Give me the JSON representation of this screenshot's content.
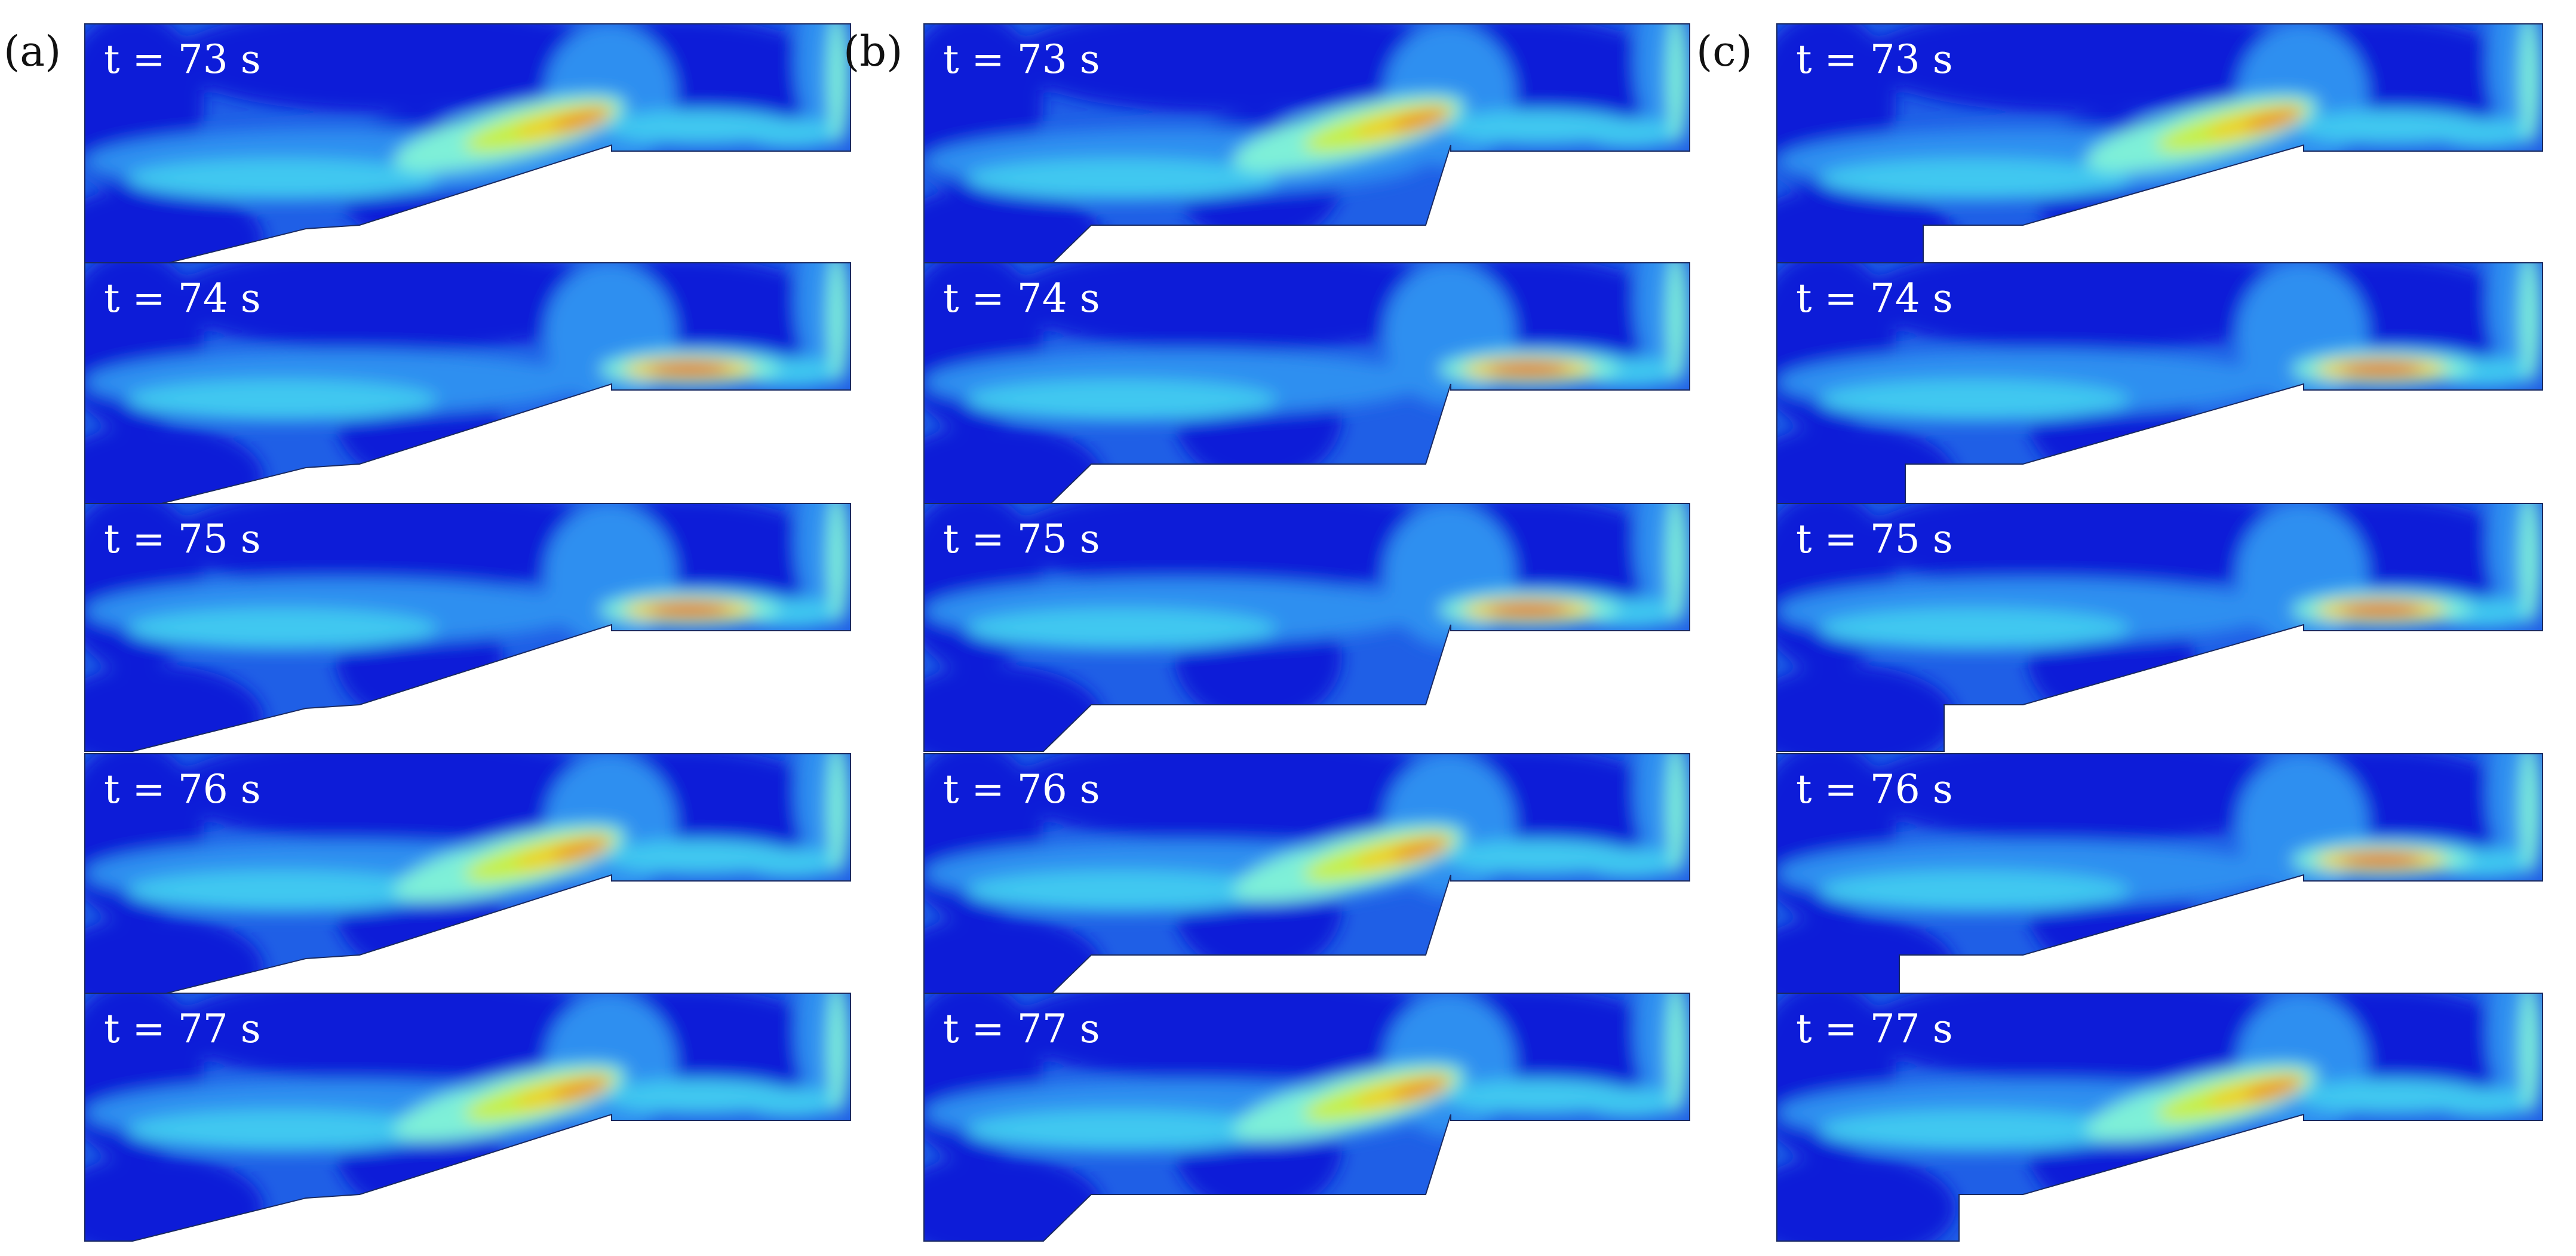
{
  "figure": {
    "columns": [
      {
        "label": "(a)",
        "geometry": "sloped ramp",
        "panels": [
          {
            "time_label": "t = 73 s",
            "hot_zone": "ramp-tip"
          },
          {
            "time_label": "t = 74 s",
            "hot_zone": "channel"
          },
          {
            "time_label": "t = 75 s",
            "hot_zone": "channel"
          },
          {
            "time_label": "t = 76 s",
            "hot_zone": "ramp-tip"
          },
          {
            "time_label": "t = 77 s",
            "hot_zone": "ramp-tip"
          }
        ]
      },
      {
        "label": "(b)",
        "geometry": "step with ramp",
        "panels": [
          {
            "time_label": "t = 73 s",
            "hot_zone": "ramp-tip"
          },
          {
            "time_label": "t = 74 s",
            "hot_zone": "channel"
          },
          {
            "time_label": "t = 75 s",
            "hot_zone": "channel"
          },
          {
            "time_label": "t = 76 s",
            "hot_zone": "ramp-tip"
          },
          {
            "time_label": "t = 77 s",
            "hot_zone": "ramp-tip"
          }
        ]
      },
      {
        "label": "(c)",
        "geometry": "vertical step",
        "panels": [
          {
            "time_label": "t = 73 s",
            "hot_zone": "ramp-tip"
          },
          {
            "time_label": "t = 74 s",
            "hot_zone": "channel"
          },
          {
            "time_label": "t = 75 s",
            "hot_zone": "channel"
          },
          {
            "time_label": "t = 76 s",
            "hot_zone": "channel"
          },
          {
            "time_label": "t = 77 s",
            "hot_zone": "ramp-tip"
          }
        ]
      }
    ],
    "colormap": [
      "#0a1fd8",
      "#1f5fe6",
      "#2f8ff0",
      "#40c8f0",
      "#7ef0d8",
      "#c8f040",
      "#f0d020",
      "#f07010",
      "#d81010"
    ]
  }
}
